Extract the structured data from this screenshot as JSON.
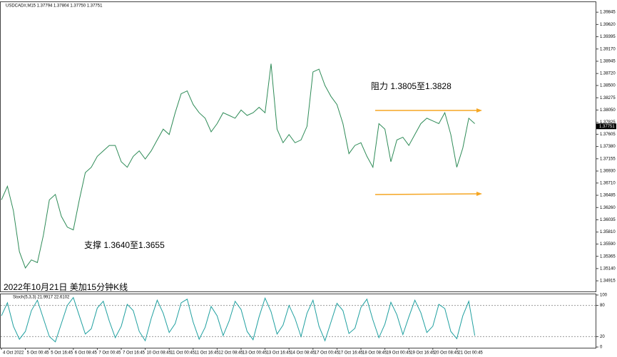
{
  "chart_data": [
    {
      "type": "line",
      "title": "USDCAD#,M15  1.37794 1.37804 1.37750 1.37751",
      "annotations": [
        "阻力 1.3805至1.3828",
        "支撑 1.3640至1.3655",
        "2022年10月21日 美加15分钟K线"
      ],
      "last_label": "1.37751",
      "last_value": 1.37751,
      "color": "#2e8b57",
      "categories": [
        "4 Oct 2022",
        null,
        null,
        null,
        "5 Oct 00:45",
        null,
        null,
        null,
        "5 Oct 16:45",
        null,
        null,
        null,
        "6 Oct 08:45",
        null,
        null,
        null,
        "7 Oct 00:45",
        null,
        null,
        null,
        "7 Oct 16:45",
        null,
        null,
        null,
        "10 Oct 08:45",
        null,
        null,
        null,
        "11 Oct 00:45",
        null,
        null,
        null,
        "11 Oct 16:45",
        null,
        null,
        null,
        "12 Oct 08:45",
        null,
        null,
        null,
        "13 Oct 00:45",
        null,
        null,
        null,
        "13 Oct 16:45",
        null,
        null,
        null,
        "14 Oct 08:45",
        null,
        null,
        null,
        "17 Oct 00:45",
        null,
        null,
        null,
        "17 Oct 16:45",
        null,
        null,
        null,
        "18 Oct 08:45",
        null,
        null,
        null,
        "19 Oct 00:45",
        null,
        null,
        null,
        "19 Oct 16:45",
        null,
        null,
        null,
        "20 Oct 08:45",
        null,
        null,
        null,
        "21 Oct 00:45",
        null,
        null,
        null
      ],
      "values": [
        1.364,
        1.3665,
        1.362,
        1.3545,
        1.3515,
        1.353,
        1.3525,
        1.3575,
        1.364,
        1.365,
        1.361,
        1.359,
        1.3585,
        1.364,
        1.369,
        1.37,
        1.372,
        1.373,
        1.374,
        1.374,
        1.371,
        1.37,
        1.372,
        1.373,
        1.3715,
        1.373,
        1.375,
        1.377,
        1.376,
        1.38,
        1.3835,
        1.384,
        1.3815,
        1.38,
        1.379,
        1.3765,
        1.378,
        1.38,
        1.3795,
        1.379,
        1.3805,
        1.3795,
        1.38,
        1.381,
        1.38,
        1.389,
        1.377,
        1.3745,
        1.376,
        1.3745,
        1.375,
        1.3775,
        1.3875,
        1.388,
        1.385,
        1.383,
        1.3815,
        1.378,
        1.3725,
        1.374,
        1.3745,
        1.372,
        1.37,
        1.378,
        1.377,
        1.371,
        1.375,
        1.3755,
        1.374,
        1.376,
        1.378,
        1.379,
        1.3785,
        1.378,
        1.38,
        1.376,
        1.37,
        1.3735,
        1.379,
        1.378
      ],
      "ylim": [
        1.3472,
        1.4003
      ],
      "yticks": [
        {
          "value": 1.39845,
          "label": "1.39845"
        },
        {
          "value": 1.3962,
          "label": "1.39620"
        },
        {
          "value": 1.39395,
          "label": "1.39395"
        },
        {
          "value": 1.3917,
          "label": "1.39170"
        },
        {
          "value": 1.38945,
          "label": "1.38945"
        },
        {
          "value": 1.3872,
          "label": "1.38720"
        },
        {
          "value": 1.385,
          "label": "1.38500"
        },
        {
          "value": 1.38275,
          "label": "1.38275"
        },
        {
          "value": 1.3805,
          "label": "1.38050"
        },
        {
          "value": 1.37825,
          "label": "1.37825"
        },
        {
          "value": 1.37605,
          "label": "1.37605"
        },
        {
          "value": 1.3738,
          "label": "1.37380"
        },
        {
          "value": 1.37155,
          "label": "1.37155"
        },
        {
          "value": 1.3693,
          "label": "1.36930"
        },
        {
          "value": 1.3671,
          "label": "1.36710"
        },
        {
          "value": 1.36485,
          "label": "1.36485"
        },
        {
          "value": 1.3626,
          "label": "1.36260"
        },
        {
          "value": 1.36035,
          "label": "1.36035"
        },
        {
          "value": 1.3581,
          "label": "1.35810"
        },
        {
          "value": 1.3559,
          "label": "1.35590"
        },
        {
          "value": 1.35365,
          "label": "1.35365"
        },
        {
          "value": 1.3514,
          "label": "1.35140"
        },
        {
          "value": 1.34915,
          "label": "1.34915"
        }
      ]
    },
    {
      "type": "line",
      "title": "Stoch(5,3,3) 21.9917 22.6102",
      "color": "#20a0a0",
      "values": [
        60,
        85,
        40,
        15,
        30,
        70,
        90,
        55,
        20,
        10,
        45,
        80,
        95,
        60,
        25,
        35,
        75,
        88,
        50,
        18,
        40,
        82,
        70,
        30,
        12,
        55,
        90,
        65,
        28,
        45,
        85,
        92,
        48,
        15,
        38,
        78,
        60,
        22,
        50,
        88,
        72,
        30,
        14,
        58,
        94,
        68,
        25,
        42,
        80,
        55,
        20,
        65,
        90,
        40,
        12,
        48,
        84,
        70,
        26,
        36,
        76,
        92,
        52,
        18,
        44,
        86,
        62,
        24,
        58,
        90,
        66,
        28,
        40,
        82,
        74,
        30,
        16,
        60,
        88,
        22
      ],
      "ylim": [
        0,
        100
      ],
      "yticks": [
        0,
        20,
        80,
        100
      ]
    }
  ]
}
